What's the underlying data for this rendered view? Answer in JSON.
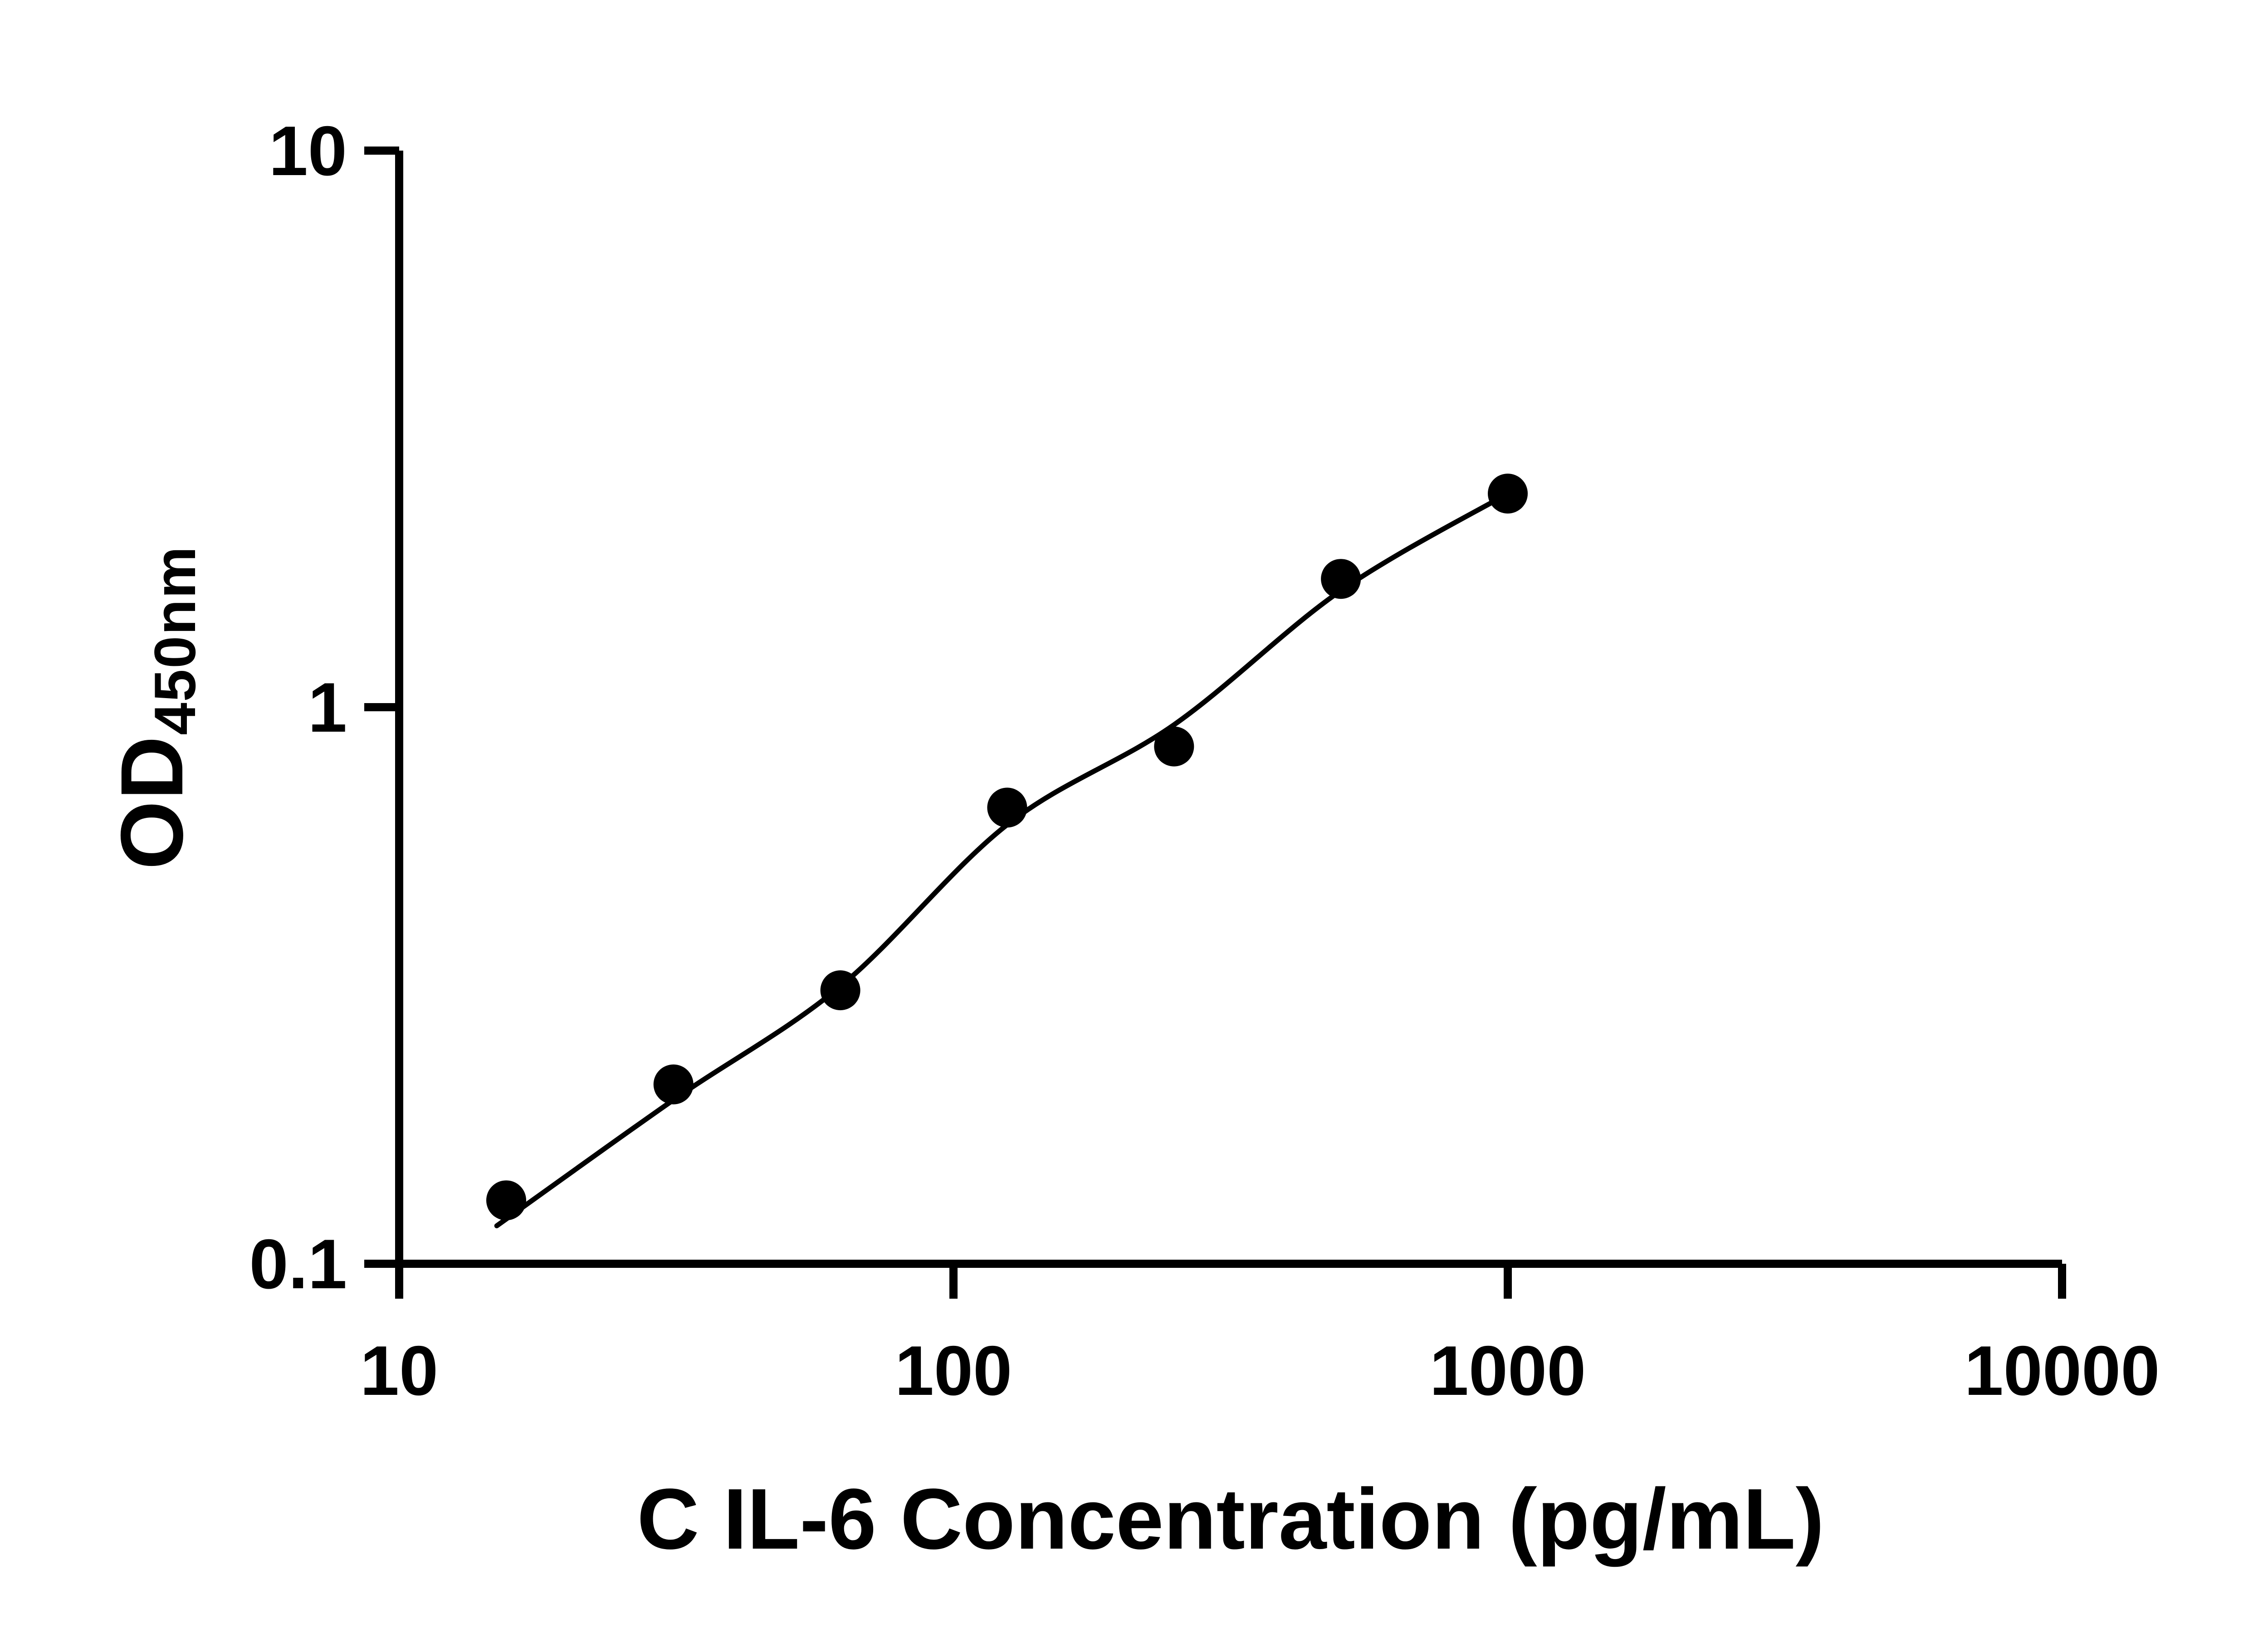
{
  "figure": {
    "background_color": "#ffffff",
    "foreground_color": "#000000"
  },
  "chart_data": {
    "type": "scatter",
    "title": "",
    "xlabel": "C IL-6 Concentration (pg/mL)",
    "ylabel": "OD450nm",
    "ylabel_main": "OD",
    "ylabel_sub": "450nm",
    "x_scale": "log",
    "y_scale": "log",
    "xlim": [
      10,
      10000
    ],
    "ylim": [
      0.1,
      10
    ],
    "x_ticks": [
      10,
      100,
      1000,
      10000
    ],
    "x_tick_labels": [
      "10",
      "100",
      "1000",
      "10000"
    ],
    "y_ticks": [
      0.1,
      1,
      10
    ],
    "y_tick_labels": [
      "0.1",
      "1",
      "10"
    ],
    "grid": false,
    "legend": "none",
    "marker_shape": "circle",
    "marker_color": "#000000",
    "curve_color": "#000000",
    "points": [
      {
        "x": 15.6,
        "y": 0.13
      },
      {
        "x": 31.25,
        "y": 0.21
      },
      {
        "x": 62.5,
        "y": 0.31
      },
      {
        "x": 125,
        "y": 0.66
      },
      {
        "x": 250,
        "y": 0.85
      },
      {
        "x": 500,
        "y": 1.7
      },
      {
        "x": 1000,
        "y": 2.42
      }
    ],
    "fit_curve_points": [
      {
        "x": 15.0,
        "y": 0.117
      },
      {
        "x": 31.25,
        "y": 0.197
      },
      {
        "x": 62.5,
        "y": 0.315
      },
      {
        "x": 125,
        "y": 0.615
      },
      {
        "x": 250,
        "y": 0.93
      },
      {
        "x": 500,
        "y": 1.62
      },
      {
        "x": 1000,
        "y": 2.42
      }
    ]
  }
}
